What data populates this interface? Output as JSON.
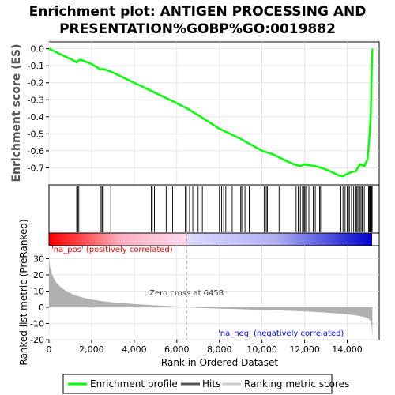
{
  "chart_data": {
    "type": "line",
    "title_lines": [
      "Enrichment plot: ANTIGEN PROCESSING AND",
      "PRESENTATION%GOBP%GO:0019882"
    ],
    "es_panel": {
      "ylabel": "Enrichment score (ES)",
      "yticks": [
        "0.0",
        "-0.1",
        "-0.2",
        "-0.3",
        "-0.4",
        "-0.5",
        "-0.6",
        "-0.7"
      ],
      "ylim": [
        -0.8,
        0.04
      ],
      "line_color": "#00ff00"
    },
    "xlim": [
      0,
      15500
    ],
    "xticks": [
      "0",
      "2,000",
      "4,000",
      "6,000",
      "8,000",
      "10,000",
      "12,000",
      "14,000"
    ],
    "xlabel": "Rank in Ordered Dataset",
    "es_points": {
      "x": [
        0,
        500,
        1000,
        1300,
        1380,
        1450,
        1600,
        2000,
        2400,
        2600,
        3000,
        3500,
        4000,
        5000,
        6000,
        6458,
        7000,
        8000,
        9000,
        10000,
        10500,
        11000,
        11500,
        11800,
        12000,
        12200,
        12500,
        12800,
        13200,
        13600,
        13800,
        14000,
        14200,
        14400,
        14600,
        14800,
        14950,
        15000,
        15050,
        15100,
        15130,
        15150,
        15170,
        15180
      ],
      "y": [
        0.0,
        -0.03,
        -0.06,
        -0.08,
        -0.07,
        -0.065,
        -0.07,
        -0.09,
        -0.12,
        -0.12,
        -0.14,
        -0.17,
        -0.2,
        -0.26,
        -0.32,
        -0.35,
        -0.39,
        -0.47,
        -0.53,
        -0.6,
        -0.62,
        -0.65,
        -0.68,
        -0.69,
        -0.68,
        -0.685,
        -0.69,
        -0.7,
        -0.72,
        -0.745,
        -0.75,
        -0.735,
        -0.725,
        -0.72,
        -0.68,
        -0.69,
        -0.65,
        -0.58,
        -0.5,
        -0.4,
        -0.25,
        -0.12,
        -0.03,
        0.0
      ]
    },
    "hits": [
      1300,
      1350,
      1400,
      2400,
      2450,
      2500,
      2550,
      2900,
      4800,
      4850,
      4950,
      5500,
      5800,
      6400,
      6450,
      6600,
      6750,
      7000,
      7200,
      8000,
      8100,
      8200,
      8300,
      8400,
      8600,
      9000,
      9050,
      9200,
      9400,
      10100,
      10200,
      10250,
      10800,
      11600,
      11700,
      11800,
      11900,
      11950,
      12000,
      12050,
      12100,
      12200,
      12400,
      12500,
      12700,
      12750,
      13700,
      13800,
      13900,
      14000,
      14050,
      14100,
      14200,
      14300,
      14400,
      14450,
      14500,
      14550,
      14600,
      14650,
      14700,
      14800,
      15000,
      15030,
      15060,
      15090,
      15120,
      15150,
      15170
    ],
    "metric_panel": {
      "ylabel": "Ranked list metric (PreRanked)",
      "yticks": [
        "30",
        "20",
        "10",
        "0",
        "-10",
        "-20"
      ],
      "ylim": [
        -20,
        38
      ],
      "fill_color": "#b0b0b0",
      "zero_cross_label": "Zero cross at 6458",
      "zero_cross_x": 6458,
      "pos_label": "'na_pos' (positively correlated)",
      "neg_label": "'na_neg' (negatively correlated)"
    },
    "metric_curve": {
      "x": [
        0,
        50,
        150,
        300,
        500,
        800,
        1200,
        1600,
        2000,
        2500,
        3000,
        4000,
        5000,
        6000,
        6458,
        7000,
        8000,
        9000,
        10000,
        11000,
        12000,
        12500,
        13000,
        13500,
        14000,
        14500,
        14800,
        15000,
        15100,
        15150,
        15180
      ],
      "y": [
        30,
        25,
        20,
        16,
        13,
        10,
        7.5,
        6,
        4.8,
        3.8,
        3.0,
        2.0,
        1.2,
        0.5,
        0,
        -0.4,
        -0.8,
        -1.2,
        -1.6,
        -2.0,
        -2.5,
        -2.9,
        -3.3,
        -3.8,
        -4.3,
        -5.2,
        -6.0,
        -7.0,
        -8.5,
        -12,
        -19
      ]
    },
    "legend": [
      "Enrichment profile",
      "Hits",
      "Ranking metric scores"
    ]
  }
}
